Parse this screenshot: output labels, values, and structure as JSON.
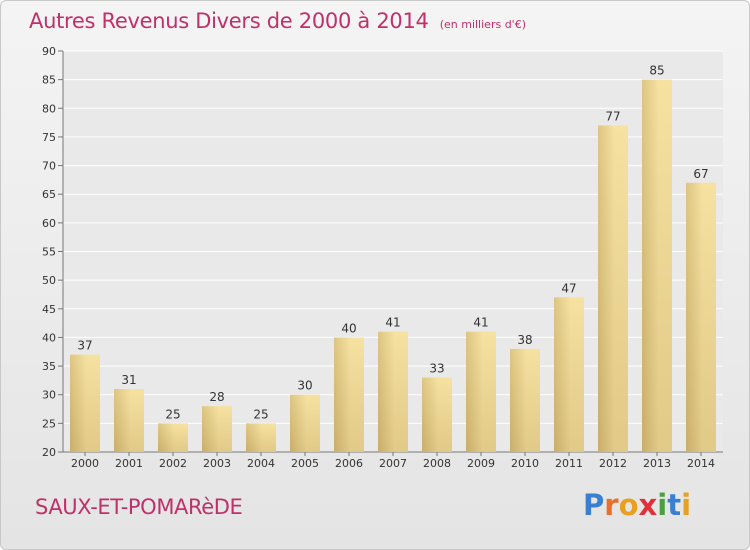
{
  "title": "Autres Revenus Divers de 2000 à 2014",
  "subtitle": "(en milliers d'€)",
  "commune": "SAUX-ET-POMARèDE",
  "logo": {
    "letters": [
      "P",
      "r",
      "o",
      "x",
      "i",
      "t",
      "i"
    ],
    "colors": [
      "#3a7fd0",
      "#e8702a",
      "#e8a020",
      "#e0303a",
      "#4aa040",
      "#3a7fd0",
      "#e8a020"
    ]
  },
  "colors": {
    "bar_light": "#f5e0a0",
    "bar_dark": "#c8ae6a",
    "title": "#c0306a"
  },
  "chart_data": {
    "type": "bar",
    "categories": [
      "2000",
      "2001",
      "2002",
      "2003",
      "2004",
      "2005",
      "2006",
      "2007",
      "2008",
      "2009",
      "2010",
      "2011",
      "2012",
      "2013",
      "2014"
    ],
    "values": [
      37,
      31,
      25,
      28,
      25,
      30,
      40,
      41,
      33,
      41,
      38,
      47,
      77,
      85,
      67
    ],
    "ylim": [
      20,
      90
    ],
    "yticks": [
      20,
      25,
      30,
      35,
      40,
      45,
      50,
      55,
      60,
      65,
      70,
      75,
      80,
      85,
      90
    ],
    "grid": true,
    "xlabel": "",
    "ylabel": ""
  }
}
